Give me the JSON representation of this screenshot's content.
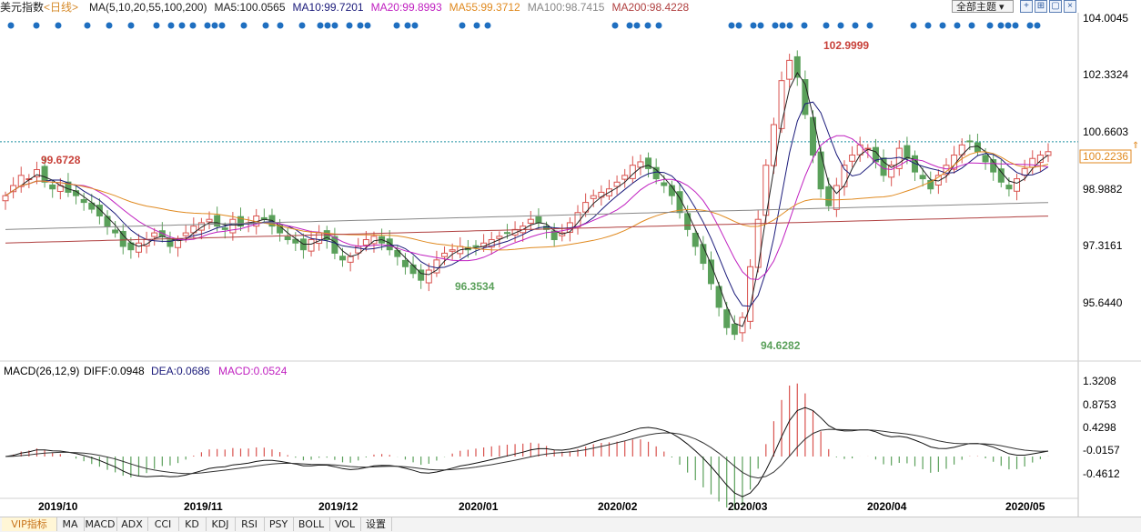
{
  "header": {
    "symbol": "美元指数",
    "period": "<日线>",
    "ma_label": "MA(5,10,20,55,100,200)",
    "ma5": "MA5:100.0565",
    "ma10": "MA10:99.7201",
    "ma20": "MA20:99.8993",
    "ma55": "MA55:99.3712",
    "ma100": "MA100:98.7415",
    "ma200": "MA200:98.4228",
    "theme_button": "全部主题",
    "icons": [
      "plus-icon",
      "layout-icon",
      "window-icon",
      "close-icon"
    ]
  },
  "colors": {
    "up": "#d9534f",
    "down": "#5aa05a",
    "ma5": "#222222",
    "ma10": "#1a1a7a",
    "ma20": "#c020c0",
    "ma55": "#e08a20",
    "ma100": "#888888",
    "ma200": "#b04040",
    "price_line": "#1a8fa0",
    "dots": "#1f6fc0"
  },
  "macd_header": {
    "label": "MACD(26,12,9)",
    "diff": "DIFF:0.0948",
    "dea": "DEA:0.0686",
    "macd": "MACD:0.0524"
  },
  "annotations": {
    "high_all": "102.9999",
    "low_all": "94.6282",
    "high_left": "99.6728",
    "low_mid": "96.3534",
    "current_price": "100.2236"
  },
  "tabs": [
    "VIP指标",
    "MA",
    "MACD",
    "ADX",
    "CCI",
    "KD",
    "KDJ",
    "RSI",
    "PSY",
    "BOLL",
    "VOL",
    "设置"
  ],
  "chart_data": [
    {
      "type": "candlestick",
      "title": "美元指数 <日线>",
      "y_axis_ticks": [
        "104.0045",
        "102.3324",
        "100.6603",
        "98.9882",
        "97.3161",
        "95.6440"
      ],
      "x_axis_ticks": [
        "2019/10",
        "2019/11",
        "2019/12",
        "2020/01",
        "2020/02",
        "2020/03",
        "2020/04",
        "2020/05"
      ],
      "ylim": [
        94.2,
        104.2
      ],
      "current_price": 100.2236,
      "series_close": [
        98.9,
        99.2,
        99.5,
        99.4,
        99.67,
        99.3,
        99.1,
        99.2,
        99.0,
        98.9,
        98.7,
        98.5,
        98.3,
        98.0,
        97.8,
        97.4,
        97.3,
        97.5,
        97.6,
        97.8,
        97.7,
        97.4,
        97.6,
        97.8,
        98.0,
        98.1,
        98.2,
        98.0,
        97.9,
        98.2,
        98.0,
        98.1,
        98.3,
        98.2,
        98.0,
        97.8,
        97.6,
        97.5,
        97.3,
        97.6,
        97.8,
        97.6,
        97.2,
        97.0,
        97.1,
        97.4,
        97.6,
        97.7,
        97.5,
        97.3,
        97.1,
        96.8,
        96.6,
        96.4,
        96.7,
        97.0,
        97.2,
        97.3,
        97.4,
        97.3,
        97.4,
        97.5,
        97.6,
        97.7,
        97.8,
        97.9,
        98.0,
        98.2,
        98.1,
        97.9,
        97.6,
        97.8,
        98.1,
        98.4,
        98.7,
        98.9,
        99.0,
        99.1,
        99.3,
        99.5,
        99.8,
        99.9,
        99.7,
        99.4,
        99.2,
        98.9,
        98.4,
        97.9,
        97.4,
        96.9,
        96.3,
        95.6,
        95.0,
        94.8,
        95.3,
        96.8,
        98.2,
        99.8,
        101.0,
        102.3,
        102.9,
        102.4,
        101.3,
        100.1,
        99.1,
        98.6,
        99.2,
        99.8,
        100.1,
        100.4,
        100.3,
        99.9,
        99.5,
        99.8,
        100.3,
        100.0,
        99.6,
        99.4,
        99.1,
        99.5,
        99.8,
        100.1,
        100.4,
        100.5,
        100.2,
        99.9,
        99.6,
        99.3,
        99.1,
        99.4,
        99.7,
        100.0,
        100.1,
        100.2
      ]
    },
    {
      "type": "macd",
      "title": "MACD(26,12,9)",
      "y_axis_ticks": [
        "1.3208",
        "0.8753",
        "0.4298",
        "-0.0157",
        "-0.4612"
      ],
      "ylim": [
        -0.75,
        1.5
      ],
      "diff_last": 0.0948,
      "dea_last": 0.0686,
      "macd_last": 0.0524
    }
  ]
}
